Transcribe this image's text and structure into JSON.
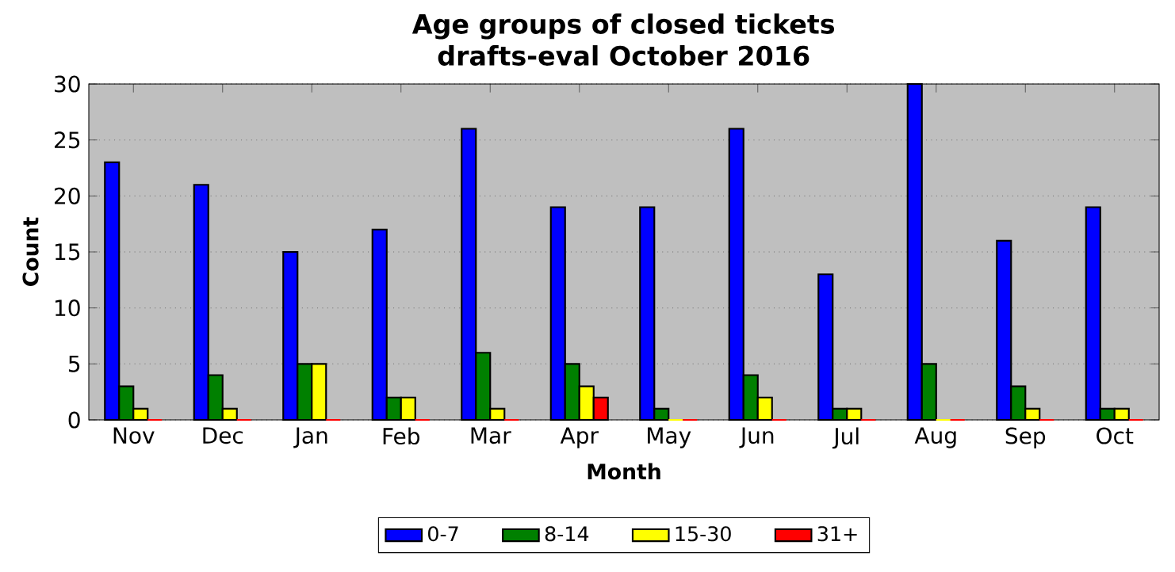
{
  "chart_data": {
    "type": "bar",
    "title": "Age groups of closed tickets\ndrafts-eval October 2016",
    "xlabel": "Month",
    "ylabel": "Count",
    "categories": [
      "Nov",
      "Dec",
      "Jan",
      "Feb",
      "Mar",
      "Apr",
      "May",
      "Jun",
      "Jul",
      "Aug",
      "Sep",
      "Oct"
    ],
    "series": [
      {
        "name": "0-7",
        "color": "#0000ff",
        "values": [
          23,
          21,
          15,
          17,
          26,
          19,
          19,
          26,
          13,
          30,
          16,
          19
        ]
      },
      {
        "name": "8-14",
        "color": "#008000",
        "values": [
          3,
          4,
          5,
          2,
          6,
          5,
          1,
          4,
          1,
          5,
          3,
          1
        ]
      },
      {
        "name": "15-30",
        "color": "#ffff00",
        "values": [
          1,
          1,
          5,
          2,
          1,
          3,
          0,
          2,
          1,
          0,
          1,
          1
        ]
      },
      {
        "name": "31+",
        "color": "#ff0000",
        "values": [
          0,
          0,
          0,
          0,
          0,
          2,
          0,
          0,
          0,
          0,
          0,
          0
        ]
      }
    ],
    "ylim": [
      0,
      30
    ],
    "yticks": [
      0,
      5,
      10,
      15,
      20,
      25,
      30
    ],
    "grid": "y",
    "legend": "bottom"
  }
}
